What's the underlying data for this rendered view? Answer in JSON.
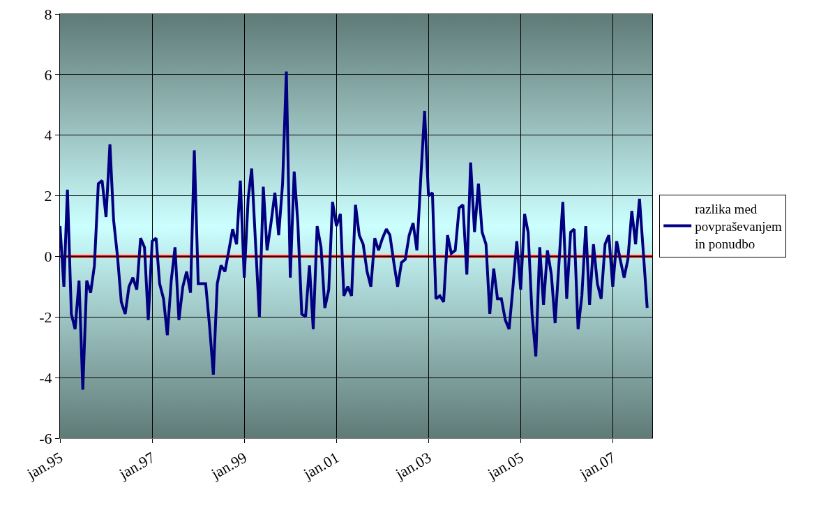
{
  "chart_data": {
    "type": "line",
    "x": [
      "1995-01",
      "1995-02",
      "1995-03",
      "1995-04",
      "1995-05",
      "1995-06",
      "1995-07",
      "1995-08",
      "1995-09",
      "1995-10",
      "1995-11",
      "1995-12",
      "1996-01",
      "1996-02",
      "1996-03",
      "1996-04",
      "1996-05",
      "1996-06",
      "1996-07",
      "1996-08",
      "1996-09",
      "1996-10",
      "1996-11",
      "1996-12",
      "1997-01",
      "1997-02",
      "1997-03",
      "1997-04",
      "1997-05",
      "1997-06",
      "1997-07",
      "1997-08",
      "1997-09",
      "1997-10",
      "1997-11",
      "1997-12",
      "1998-01",
      "1998-02",
      "1998-03",
      "1998-04",
      "1998-05",
      "1998-06",
      "1998-07",
      "1998-08",
      "1998-09",
      "1998-10",
      "1998-11",
      "1998-12",
      "1999-01",
      "1999-02",
      "1999-03",
      "1999-04",
      "1999-05",
      "1999-06",
      "1999-07",
      "1999-08",
      "1999-09",
      "1999-10",
      "1999-11",
      "1999-12",
      "2000-01",
      "2000-02",
      "2000-03",
      "2000-04",
      "2000-05",
      "2000-06",
      "2000-07",
      "2000-08",
      "2000-09",
      "2000-10",
      "2000-11",
      "2000-12",
      "2001-01",
      "2001-02",
      "2001-03",
      "2001-04",
      "2001-05",
      "2001-06",
      "2001-07",
      "2001-08",
      "2001-09",
      "2001-10",
      "2001-11",
      "2001-12",
      "2002-01",
      "2002-02",
      "2002-03",
      "2002-04",
      "2002-05",
      "2002-06",
      "2002-07",
      "2002-08",
      "2002-09",
      "2002-10",
      "2002-11",
      "2002-12",
      "2003-01",
      "2003-02",
      "2003-03",
      "2003-04",
      "2003-05",
      "2003-06",
      "2003-07",
      "2003-08",
      "2003-09",
      "2003-10",
      "2003-11",
      "2003-12",
      "2004-01",
      "2004-02",
      "2004-03",
      "2004-04",
      "2004-05",
      "2004-06",
      "2004-07",
      "2004-08",
      "2004-09",
      "2004-10",
      "2004-11",
      "2004-12",
      "2005-01",
      "2005-02",
      "2005-03",
      "2005-04",
      "2005-05",
      "2005-06",
      "2005-07",
      "2005-08",
      "2005-09",
      "2005-10",
      "2005-11",
      "2005-12",
      "2006-01",
      "2006-02",
      "2006-03",
      "2006-04",
      "2006-05",
      "2006-06",
      "2006-07",
      "2006-08",
      "2006-09",
      "2006-10",
      "2006-11",
      "2006-12",
      "2007-01",
      "2007-02",
      "2007-03",
      "2007-04",
      "2007-05",
      "2007-06",
      "2007-07",
      "2007-08",
      "2007-09",
      "2007-10"
    ],
    "series": [
      {
        "name": "razlika med povpraševanjem in ponudbo",
        "color": "#000080",
        "values": [
          1.0,
          -1.0,
          2.2,
          -1.9,
          -2.4,
          -0.8,
          -4.4,
          -0.8,
          -1.2,
          -0.3,
          2.4,
          2.5,
          1.3,
          3.7,
          1.2,
          0.0,
          -1.5,
          -1.9,
          -1.0,
          -0.7,
          -1.1,
          0.6,
          0.3,
          -2.1,
          0.5,
          0.6,
          -0.9,
          -1.4,
          -2.6,
          -0.8,
          0.3,
          -2.1,
          -1.0,
          -0.5,
          -1.2,
          3.5,
          -0.9,
          -0.9,
          -0.9,
          -2.3,
          -3.9,
          -0.9,
          -0.3,
          -0.5,
          0.2,
          0.9,
          0.4,
          2.5,
          -0.7,
          1.9,
          2.9,
          0.4,
          -2.0,
          2.3,
          0.2,
          1.1,
          2.1,
          0.7,
          2.4,
          6.1,
          -0.7,
          2.8,
          1.1,
          -1.9,
          -2.0,
          -0.3,
          -2.4,
          1.0,
          0.3,
          -1.7,
          -1.1,
          1.8,
          1.0,
          1.4,
          -1.3,
          -1.0,
          -1.3,
          1.7,
          0.7,
          0.4,
          -0.5,
          -1.0,
          0.6,
          0.2,
          0.6,
          0.9,
          0.7,
          -0.2,
          -1.0,
          -0.2,
          -0.1,
          0.7,
          1.1,
          0.2,
          2.6,
          4.8,
          2.0,
          2.1,
          -1.4,
          -1.3,
          -1.5,
          0.7,
          0.1,
          0.2,
          1.6,
          1.7,
          -0.6,
          3.1,
          0.8,
          2.4,
          0.8,
          0.4,
          -1.9,
          -0.4,
          -1.4,
          -1.4,
          -2.1,
          -2.4,
          -1.0,
          0.5,
          -1.1,
          1.4,
          0.8,
          -1.9,
          -3.3,
          0.3,
          -1.6,
          0.2,
          -0.6,
          -2.2,
          -0.2,
          1.8,
          -1.4,
          0.8,
          0.9,
          -2.4,
          -1.3,
          1.0,
          -1.6,
          0.4,
          -0.9,
          -1.4,
          0.4,
          0.7,
          -1.0,
          0.5,
          -0.1,
          -0.7,
          -0.1,
          1.5,
          0.4,
          1.9,
          0.1,
          -1.7
        ]
      }
    ],
    "xlim": [
      "1995-01",
      "2007-11-10"
    ],
    "xticks": [
      {
        "value": "1995-01",
        "label": "jan.95"
      },
      {
        "value": "1997-01",
        "label": "jan.97"
      },
      {
        "value": "1999-01",
        "label": "jan.99"
      },
      {
        "value": "2001-01",
        "label": "jan.01"
      },
      {
        "value": "2003-01",
        "label": "jan.03"
      },
      {
        "value": "2005-01",
        "label": "jan.05"
      },
      {
        "value": "2007-01",
        "label": "jan.07"
      }
    ],
    "ylim": [
      -6,
      8
    ],
    "yticks": [
      -6,
      -4,
      -2,
      0,
      2,
      4,
      6,
      8
    ],
    "ref_lines": [
      {
        "axis": "y",
        "value": 0,
        "color": "#ff0000"
      }
    ],
    "grid": true,
    "legend": "right",
    "marker": "none",
    "line_style": "solid"
  }
}
